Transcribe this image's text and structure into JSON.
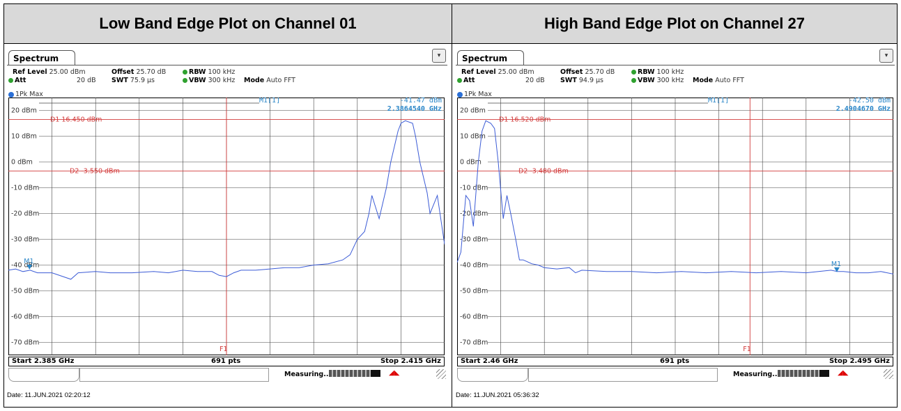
{
  "panels": [
    {
      "title": "Low Band Edge Plot on Channel 01",
      "tab": "Spectrum",
      "params": {
        "ref_level_label": "Ref Level",
        "ref_level": "25.00 dBm",
        "offset_label": "Offset",
        "offset": "25.70 dB",
        "rbw_label": "RBW",
        "rbw": "100 kHz",
        "att_label": "Att",
        "att": "20 dB",
        "swt_label": "SWT",
        "swt": "75.9 µs",
        "vbw_label": "VBW",
        "vbw": "300 kHz",
        "mode_label": "Mode",
        "mode": "Auto FFT"
      },
      "trace_label": "1Pk Max",
      "marker_label": "M1[1]",
      "marker_level": "-41.47 dBm",
      "marker_freq": "2.3864540 GHz",
      "start": "Start 2.385 GHz",
      "pts": "691 pts",
      "stop": "Stop 2.415 GHz",
      "measuring": "Measuring...",
      "date": "Date: 11.JUN.2021 02:20:12"
    },
    {
      "title": "High Band Edge Plot on Channel 27",
      "tab": "Spectrum",
      "params": {
        "ref_level_label": "Ref Level",
        "ref_level": "25.00 dBm",
        "offset_label": "Offset",
        "offset": "25.70 dB",
        "rbw_label": "RBW",
        "rbw": "100 kHz",
        "att_label": "Att",
        "att": "20 dB",
        "swt_label": "SWT",
        "swt": "94.9 µs",
        "vbw_label": "VBW",
        "vbw": "300 kHz",
        "mode_label": "Mode",
        "mode": "Auto FFT"
      },
      "trace_label": "1Pk Max",
      "marker_label": "M1[1]",
      "marker_level": "-42.50 dBm",
      "marker_freq": "2.4904670 GHz",
      "start": "Start 2.46 GHz",
      "pts": "691 pts",
      "stop": "Stop 2.495 GHz",
      "measuring": "Measuring...",
      "date": "Date: 11.JUN.2021 05:36:32"
    }
  ],
  "chart_data": [
    {
      "type": "line",
      "title": "Low Band Edge Plot on Channel 01",
      "x_unit": "GHz",
      "y_unit": "dBm",
      "xlim": [
        2.385,
        2.415
      ],
      "ylim": [
        -75,
        25
      ],
      "yticks": [
        20,
        10,
        0,
        -10,
        -20,
        -30,
        -40,
        -50,
        -60,
        -70
      ],
      "ytick_labels": [
        "20 dBm",
        "10 dBm",
        "0 dBm",
        "-10 dBm",
        "-20 dBm",
        "-30 dBm",
        "-40 dBm",
        "-50 dBm",
        "-60 dBm",
        "-70 dBm"
      ],
      "grid": true,
      "display_lines": [
        {
          "name": "D1",
          "label": "D1  16.450 dBm",
          "y": 16.45
        },
        {
          "name": "D2",
          "label": "D2  -3.550 dBm",
          "y": -3.55
        }
      ],
      "frequency_lines": [
        {
          "name": "F1",
          "label": "F1",
          "x": 2.4
        }
      ],
      "markers": [
        {
          "name": "M1",
          "label": "M1",
          "x": 2.386454,
          "y": -41.47
        }
      ],
      "series": [
        {
          "x": [
            2.385,
            2.3855,
            2.386,
            2.3865,
            2.387,
            2.388,
            2.3893,
            2.3898,
            2.391,
            2.392,
            2.3935,
            2.395,
            2.396,
            2.397,
            2.398,
            2.399,
            2.3995,
            2.4,
            2.4005,
            2.401,
            2.402,
            2.403,
            2.404,
            2.405,
            2.406,
            2.407,
            2.408,
            2.4085,
            2.409,
            2.4095,
            2.4098,
            2.41,
            2.4105,
            2.411,
            2.4113,
            2.4118,
            2.412,
            2.4123,
            2.4128,
            2.413,
            2.4133,
            2.4138,
            2.414,
            2.4145,
            2.415
          ],
          "y": [
            -42,
            -41.5,
            -42.5,
            -42,
            -43,
            -43,
            -45.5,
            -43,
            -42.5,
            -43,
            -43,
            -42.5,
            -43,
            -42,
            -42.5,
            -42.5,
            -44,
            -44.5,
            -43,
            -42,
            -42,
            -41.5,
            -41,
            -41,
            -40,
            -39.5,
            -38,
            -36,
            -30,
            -27,
            -20,
            -13,
            -22,
            -10,
            0,
            12,
            15,
            16,
            15,
            10,
            0,
            -12,
            -20,
            -13,
            -32
          ]
        }
      ]
    },
    {
      "type": "line",
      "title": "High Band Edge Plot on Channel 27",
      "x_unit": "GHz",
      "y_unit": "dBm",
      "xlim": [
        2.46,
        2.495
      ],
      "ylim": [
        -75,
        25
      ],
      "yticks": [
        20,
        10,
        0,
        -10,
        -20,
        -30,
        -40,
        -50,
        -60,
        -70
      ],
      "ytick_labels": [
        "20 dBm",
        "10 dBm",
        "0 dBm",
        "-10 dBm",
        "-20 dBm",
        "-30 dBm",
        "-40 dBm",
        "-50 dBm",
        "-60 dBm",
        "-70 dBm"
      ],
      "grid": true,
      "display_lines": [
        {
          "name": "D1",
          "label": "D1  16.520 dBm",
          "y": 16.52
        },
        {
          "name": "D2",
          "label": "D2  -3.480 dBm",
          "y": -3.48
        }
      ],
      "frequency_lines": [
        {
          "name": "F1",
          "label": "F1",
          "x": 2.4835
        }
      ],
      "markers": [
        {
          "name": "M1",
          "label": "M1",
          "x": 2.490467,
          "y": -42.5
        }
      ],
      "series": [
        {
          "x": [
            2.46,
            2.4603,
            2.4607,
            2.461,
            2.4613,
            2.4617,
            2.462,
            2.4623,
            2.4627,
            2.463,
            2.4633,
            2.4637,
            2.464,
            2.4643,
            2.4647,
            2.465,
            2.4653,
            2.466,
            2.4665,
            2.467,
            2.468,
            2.469,
            2.4695,
            2.47,
            2.472,
            2.474,
            2.476,
            2.478,
            2.48,
            2.482,
            2.484,
            2.486,
            2.488,
            2.49,
            2.4905,
            2.491,
            2.492,
            2.493,
            2.494,
            2.495
          ],
          "y": [
            -39,
            -35,
            -13,
            -15,
            -25,
            0,
            12,
            16,
            15,
            13,
            0,
            -22,
            -13,
            -20,
            -30,
            -38,
            -38,
            -39.5,
            -40,
            -41,
            -41.5,
            -41,
            -43,
            -42,
            -42.5,
            -42.5,
            -43,
            -42.5,
            -43,
            -42.5,
            -43,
            -42.5,
            -43,
            -42,
            -42.5,
            -42.5,
            -43,
            -43,
            -42.5,
            -43.5
          ]
        }
      ]
    }
  ]
}
